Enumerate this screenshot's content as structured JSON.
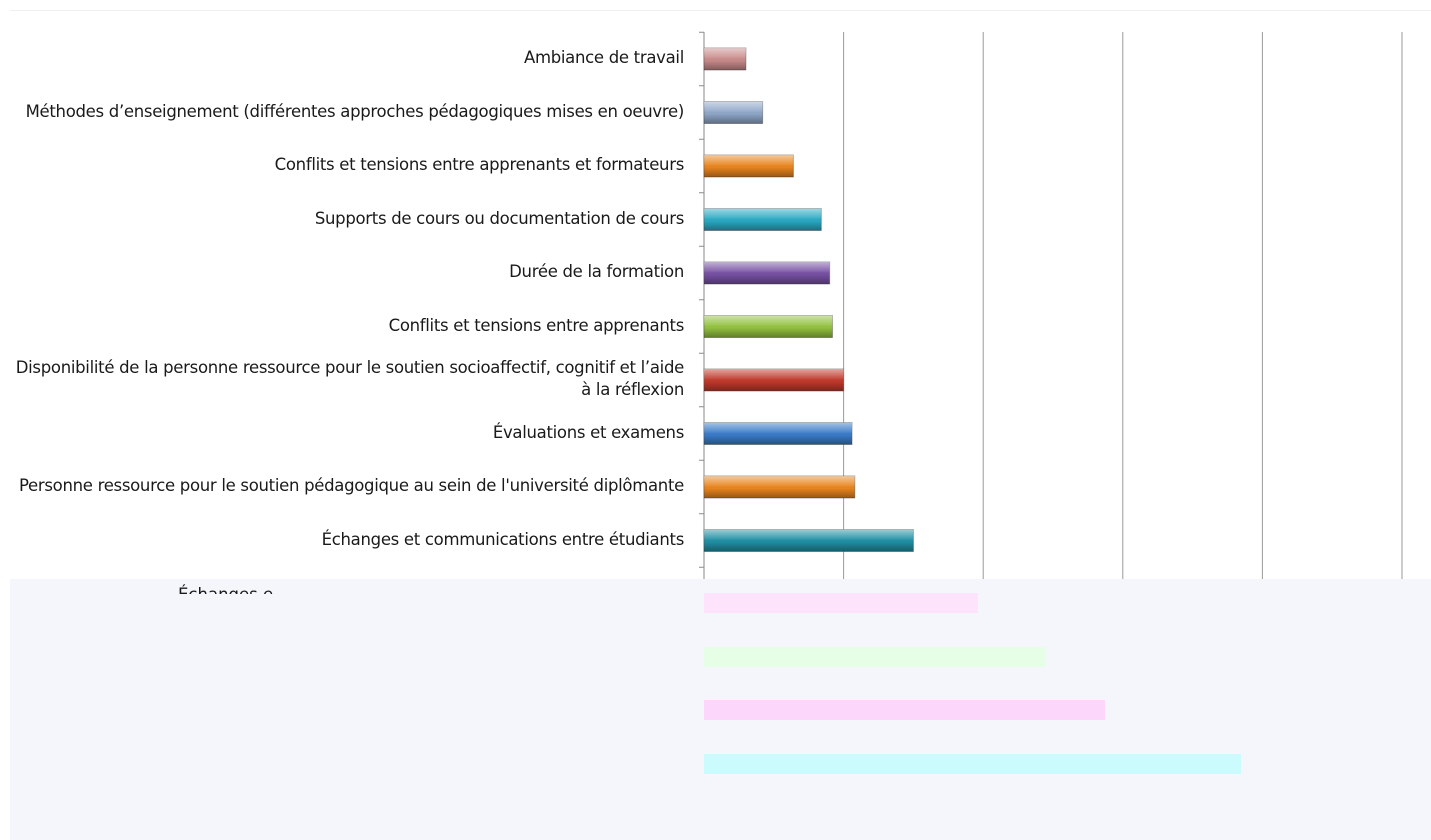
{
  "chart_data": {
    "type": "bar",
    "orientation": "horizontal",
    "title": "",
    "xlabel": "",
    "ylabel": "",
    "grid": true,
    "xlim": [
      0,
      5.2
    ],
    "categories": [
      "Ambiance de travail",
      "Méthodes d’enseignement (différentes approches pédagogiques mises en oeuvre)",
      "Conflits et tensions entre apprenants et formateurs",
      "Supports de cours ou documentation de cours",
      "Durée de la formation",
      "Conflits et tensions entre apprenants",
      "Disponibilité de la personne ressource pour le soutien socioaffectif, cognitif et l’aide à la réflexion",
      "Évaluations et examens",
      "Personne ressource pour le soutien pédagogique au sein de l'université diplômante",
      "Échanges et communications entre étudiants"
    ],
    "values": [
      0.3,
      0.42,
      0.64,
      0.84,
      0.9,
      0.92,
      1.0,
      1.06,
      1.08,
      1.5
    ],
    "bar_colors": [
      "#c98b8b",
      "#8fa6c8",
      "#e8851e",
      "#29a9c2",
      "#7750a3",
      "#93c13f",
      "#c0392b",
      "#3a7bc8",
      "#e8851e",
      "#1f8fa3"
    ],
    "obscured_category_fragment": "Échanges e",
    "obscured_values": [
      1.96,
      2.44,
      2.87,
      3.85
    ],
    "obscured_colors": [
      "#fde3fb",
      "#e6fde6",
      "#fdd7fb",
      "#ccfbfd"
    ]
  }
}
